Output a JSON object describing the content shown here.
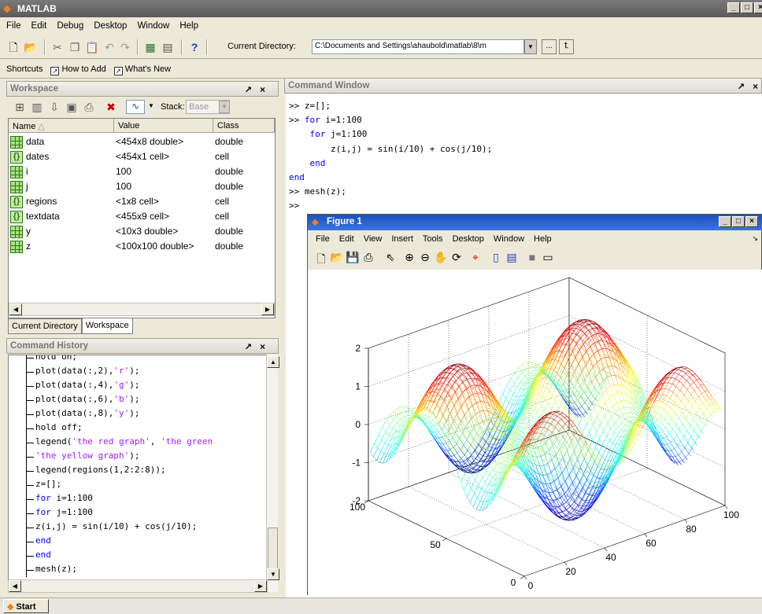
{
  "app": {
    "title": "MATLAB",
    "title_bar_buttons": [
      "_",
      "□",
      "×"
    ]
  },
  "menubar": {
    "items": [
      "File",
      "Edit",
      "Debug",
      "Desktop",
      "Window",
      "Help"
    ]
  },
  "toolbar": {
    "current_directory_label": "Current Directory:",
    "current_directory_value": "C:\\Documents and Settings\\ahaubold\\matlab\\8\\m",
    "browse_label": "...",
    "help_label": "?"
  },
  "shortcuts": {
    "label": "Shortcuts",
    "items": [
      "How to Add",
      "What's New"
    ]
  },
  "workspace": {
    "title": "Workspace",
    "stack_label": "Stack:",
    "stack_value": "Base",
    "columns": [
      "Name",
      "Value",
      "Class"
    ],
    "sort_indicator": "△",
    "rows": [
      {
        "name": "data",
        "value": "<454x8 double>",
        "class": "double",
        "icon": "matrix-icon"
      },
      {
        "name": "dates",
        "value": "<454x1 cell>",
        "class": "cell",
        "icon": "cell-icon"
      },
      {
        "name": "i",
        "value": "100",
        "class": "double",
        "icon": "matrix-icon"
      },
      {
        "name": "j",
        "value": "100",
        "class": "double",
        "icon": "matrix-icon"
      },
      {
        "name": "regions",
        "value": "<1x8 cell>",
        "class": "cell",
        "icon": "cell-icon"
      },
      {
        "name": "textdata",
        "value": "<455x9 cell>",
        "class": "cell",
        "icon": "cell-icon"
      },
      {
        "name": "y",
        "value": "<10x3 double>",
        "class": "double",
        "icon": "matrix-icon"
      },
      {
        "name": "z",
        "value": "<100x100 double>",
        "class": "double",
        "icon": "matrix-icon"
      }
    ],
    "tabs": [
      "Current Directory",
      "Workspace"
    ]
  },
  "history": {
    "title": "Command History",
    "lines": [
      {
        "text": "hold on;"
      },
      {
        "parts": [
          {
            "t": "plot(data(:,2),"
          },
          {
            "t": "'r'",
            "s": "str"
          },
          {
            "t": ");"
          }
        ]
      },
      {
        "parts": [
          {
            "t": "plot(data(:,4),"
          },
          {
            "t": "'g'",
            "s": "str"
          },
          {
            "t": ");"
          }
        ]
      },
      {
        "parts": [
          {
            "t": "plot(data(:,6),"
          },
          {
            "t": "'b'",
            "s": "str"
          },
          {
            "t": ");"
          }
        ]
      },
      {
        "parts": [
          {
            "t": "plot(data(:,8),"
          },
          {
            "t": "'y'",
            "s": "str"
          },
          {
            "t": ");"
          }
        ]
      },
      {
        "text": "hold off;"
      },
      {
        "parts": [
          {
            "t": "legend("
          },
          {
            "t": "'the red graph'",
            "s": "str"
          },
          {
            "t": ", "
          },
          {
            "t": "'the green",
            "s": "str"
          }
        ]
      },
      {
        "parts": [
          {
            "t": "'the yellow graph'",
            "s": "str"
          },
          {
            "t": ");"
          }
        ]
      },
      {
        "text": "legend(regions(1,2:2:8));"
      },
      {
        "text": "z=[];"
      },
      {
        "parts": [
          {
            "t": "for",
            "s": "kw"
          },
          {
            "t": " i=1:100"
          }
        ]
      },
      {
        "parts": [
          {
            "t": "for",
            "s": "kw"
          },
          {
            "t": " j=1:100"
          }
        ]
      },
      {
        "text": "z(i,j) = sin(i/10) + cos(j/10);"
      },
      {
        "parts": [
          {
            "t": "end",
            "s": "kw"
          }
        ]
      },
      {
        "parts": [
          {
            "t": "end",
            "s": "kw"
          }
        ]
      },
      {
        "text": "mesh(z);"
      }
    ]
  },
  "command_window": {
    "title": "Command Window",
    "lines": [
      {
        "parts": [
          {
            "t": ">> z=[];"
          }
        ]
      },
      {
        "parts": [
          {
            "t": ">> "
          },
          {
            "t": "for",
            "s": "kw"
          },
          {
            "t": " i=1:100"
          }
        ]
      },
      {
        "parts": [
          {
            "t": "    "
          },
          {
            "t": "for",
            "s": "kw"
          },
          {
            "t": " j=1:100"
          }
        ]
      },
      {
        "parts": [
          {
            "t": "        z(i,j) = sin(i/10) + cos(j/10);"
          }
        ]
      },
      {
        "parts": [
          {
            "t": "    "
          },
          {
            "t": "end",
            "s": "kw"
          }
        ]
      },
      {
        "parts": [
          {
            "t": "end",
            "s": "kw"
          }
        ]
      },
      {
        "parts": [
          {
            "t": ">> mesh(z);"
          }
        ]
      },
      {
        "parts": [
          {
            "t": ">>"
          }
        ]
      }
    ]
  },
  "figure": {
    "title": "Figure 1",
    "menus": [
      "File",
      "Edit",
      "View",
      "Insert",
      "Tools",
      "Desktop",
      "Window",
      "Help"
    ]
  },
  "chart_data": {
    "type": "mesh",
    "function": "z(i,j) = sin(i/10) + cos(j/10)",
    "x_range": [
      0,
      100
    ],
    "y_range": [
      0,
      100
    ],
    "zlim": [
      -2,
      2
    ],
    "x_ticks": [
      "0",
      "20",
      "40",
      "60",
      "80",
      "100"
    ],
    "y_ticks": [
      "0",
      "50",
      "100"
    ],
    "z_ticks": [
      "2",
      "1",
      "0",
      "-1",
      "-2"
    ],
    "colormap": "jet",
    "grid": true
  },
  "taskbar": {
    "start_label": "Start"
  },
  "colors": {
    "matlab_orange": "#e8741c",
    "keyword": "#0000ff",
    "string": "#a020f0"
  }
}
